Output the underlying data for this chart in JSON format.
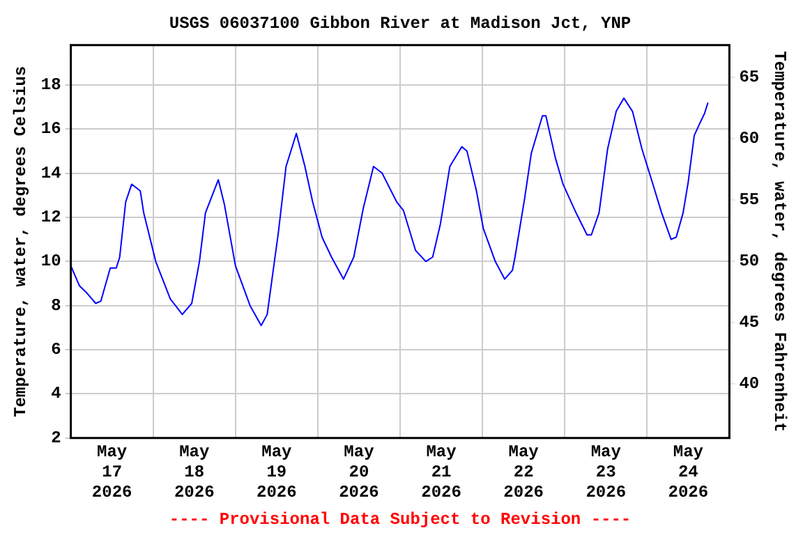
{
  "chart_data": {
    "type": "line",
    "title": "USGS 06037100 Gibbon River at Madison Jct, YNP",
    "ylabel": "Temperature, water, degrees Celsius",
    "y2label": "Temperature, water, degrees Fahrenheit",
    "annotations": [
      "---- Provisional Data Subject to Revision ----"
    ],
    "x": [
      "2026-05-17T00:00",
      "2026-05-17T02:30",
      "2026-05-17T04:30",
      "2026-05-17T07:15",
      "2026-05-17T08:45",
      "2026-05-17T11:30",
      "2026-05-17T13:15",
      "2026-05-17T14:15",
      "2026-05-17T16:00",
      "2026-05-17T17:45",
      "2026-05-17T20:15",
      "2026-05-17T21:15",
      "2026-05-18T00:45",
      "2026-05-18T05:00",
      "2026-05-18T08:30",
      "2026-05-18T11:15",
      "2026-05-18T13:30",
      "2026-05-18T15:15",
      "2026-05-18T17:45",
      "2026-05-18T19:00",
      "2026-05-18T20:45",
      "2026-05-19T00:00",
      "2026-05-19T04:15",
      "2026-05-19T07:30",
      "2026-05-19T09:15",
      "2026-05-19T12:30",
      "2026-05-19T14:45",
      "2026-05-19T17:45",
      "2026-05-19T20:15",
      "2026-05-19T22:30",
      "2026-05-20T01:15",
      "2026-05-20T04:00",
      "2026-05-20T07:30",
      "2026-05-20T10:30",
      "2026-05-20T13:15",
      "2026-05-20T16:15",
      "2026-05-20T18:45",
      "2026-05-20T23:00",
      "2026-05-21T01:00",
      "2026-05-21T04:30",
      "2026-05-21T07:30",
      "2026-05-21T09:30",
      "2026-05-21T11:45",
      "2026-05-21T14:30",
      "2026-05-21T18:00",
      "2026-05-21T19:30",
      "2026-05-21T22:15",
      "2026-05-22T00:15",
      "2026-05-22T03:45",
      "2026-05-22T06:30",
      "2026-05-22T08:45",
      "2026-05-22T09:30",
      "2026-05-22T12:15",
      "2026-05-22T14:15",
      "2026-05-22T17:30",
      "2026-05-22T18:30",
      "2026-05-22T21:15",
      "2026-05-22T23:30",
      "2026-05-23T03:00",
      "2026-05-23T06:30",
      "2026-05-23T07:45",
      "2026-05-23T10:00",
      "2026-05-23T12:30",
      "2026-05-23T15:00",
      "2026-05-23T17:15",
      "2026-05-23T19:45",
      "2026-05-23T22:30",
      "2026-05-24T01:30",
      "2026-05-24T04:15",
      "2026-05-24T07:00",
      "2026-05-24T08:30",
      "2026-05-24T10:30",
      "2026-05-24T12:00",
      "2026-05-24T13:45",
      "2026-05-24T15:30",
      "2026-05-24T16:45",
      "2026-05-24T17:45"
    ],
    "series": [
      {
        "color": "#0000ff",
        "values": [
          9.8,
          8.9,
          8.6,
          8.1,
          8.2,
          9.7,
          9.7,
          10.2,
          12.7,
          13.5,
          13.2,
          12.2,
          10.0,
          8.3,
          7.6,
          8.1,
          10.0,
          12.2,
          13.2,
          13.7,
          12.6,
          9.8,
          8.0,
          7.1,
          7.6,
          11.3,
          14.3,
          15.8,
          14.3,
          12.7,
          11.1,
          10.2,
          9.2,
          10.2,
          12.4,
          14.3,
          14.0,
          12.7,
          12.3,
          10.5,
          10.0,
          10.2,
          11.7,
          14.3,
          15.2,
          15.0,
          13.2,
          11.5,
          10.0,
          9.2,
          9.6,
          10.2,
          12.8,
          14.9,
          16.6,
          16.6,
          14.7,
          13.5,
          12.3,
          11.2,
          11.2,
          12.2,
          15.1,
          16.8,
          17.4,
          16.8,
          15.1,
          13.6,
          12.2,
          11.0,
          11.1,
          12.2,
          13.6,
          15.7,
          16.3,
          16.7,
          17.2
        ]
      }
    ],
    "xlim": [
      "2026-05-17T00:00",
      "2026-05-25T00:00"
    ],
    "xticks": [
      {
        "value": "2026-05-17T12:00",
        "label": "May\n17\n2026"
      },
      {
        "value": "2026-05-18T00:00",
        "label": null
      },
      {
        "value": "2026-05-18T12:00",
        "label": "May\n18\n2026"
      },
      {
        "value": "2026-05-19T00:00",
        "label": null
      },
      {
        "value": "2026-05-19T12:00",
        "label": "May\n19\n2026"
      },
      {
        "value": "2026-05-20T00:00",
        "label": null
      },
      {
        "value": "2026-05-20T12:00",
        "label": "May\n20\n2026"
      },
      {
        "value": "2026-05-21T00:00",
        "label": null
      },
      {
        "value": "2026-05-21T12:00",
        "label": "May\n21\n2026"
      },
      {
        "value": "2026-05-22T00:00",
        "label": null
      },
      {
        "value": "2026-05-22T12:00",
        "label": "May\n22\n2026"
      },
      {
        "value": "2026-05-23T00:00",
        "label": null
      },
      {
        "value": "2026-05-23T12:00",
        "label": "May\n23\n2026"
      },
      {
        "value": "2026-05-24T00:00",
        "label": null
      },
      {
        "value": "2026-05-24T12:00",
        "label": "May\n24\n2026"
      }
    ],
    "ylim": [
      2,
      19.8
    ],
    "yticks": [
      2,
      4,
      6,
      8,
      10,
      12,
      14,
      16,
      18
    ],
    "y2lim": [
      35.6,
      67.6
    ],
    "y2ticks": [
      40,
      45,
      50,
      55,
      60,
      65
    ],
    "grid": true,
    "legend": false,
    "marker": "none",
    "line_style": "solid"
  }
}
